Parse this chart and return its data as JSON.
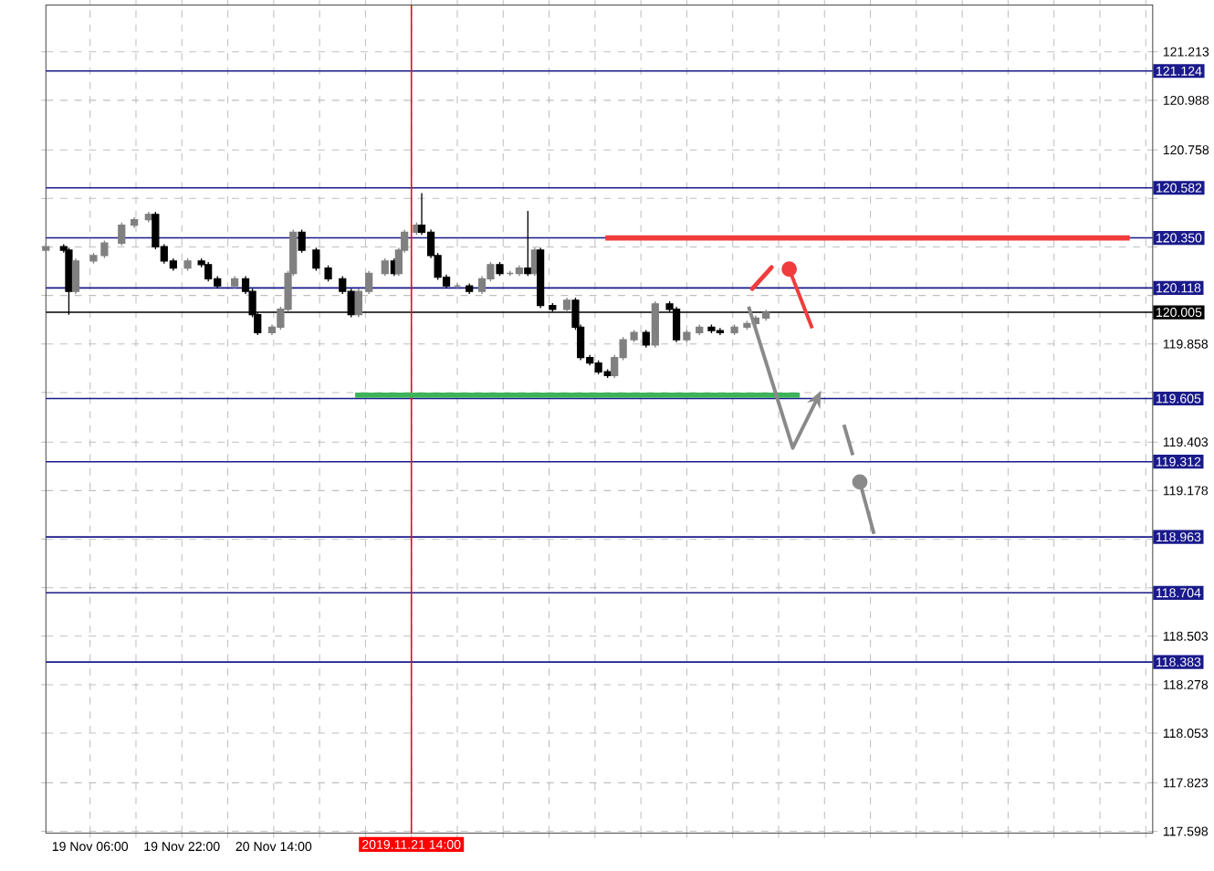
{
  "chart_data": {
    "type": "candlestick",
    "x": [
      "2019-11-18T22:18",
      "2019-11-19T01:24",
      "2019-11-19T02:18",
      "2019-11-19T03:30",
      "2019-11-19T06:36",
      "2019-11-19T08:30",
      "2019-11-19T11:30",
      "2019-11-19T13:42",
      "2019-11-19T16:12",
      "2019-11-19T17:24",
      "2019-11-19T18:54",
      "2019-11-19T20:30",
      "2019-11-19T23:00",
      "2019-11-20T01:24",
      "2019-11-20T02:36",
      "2019-11-20T04:12",
      "2019-11-20T07:12",
      "2019-11-20T09:06",
      "2019-11-20T10:18",
      "2019-11-20T11:12",
      "2019-11-20T13:42",
      "2019-11-20T15:12",
      "2019-11-20T16:30",
      "2019-11-20T17:24",
      "2019-11-20T18:54",
      "2019-11-20T21:24",
      "2019-11-20T23:30",
      "2019-11-21T02:00",
      "2019-11-21T03:30",
      "2019-11-21T04:48",
      "2019-11-21T06:36",
      "2019-11-21T09:24",
      "2019-11-21T11:00",
      "2019-11-21T11:48",
      "2019-11-21T12:48",
      "2019-11-21T14:54",
      "2019-11-21T15:48",
      "2019-11-21T17:24",
      "2019-11-21T18:36",
      "2019-11-21T20:06",
      "2019-11-21T22:00",
      "2019-11-22T00:06",
      "2019-11-22T02:18",
      "2019-11-22T03:48",
      "2019-11-22T05:24",
      "2019-11-22T07:12",
      "2019-11-22T08:48",
      "2019-11-22T10:18",
      "2019-11-22T11:30",
      "2019-11-22T12:30",
      "2019-11-22T14:36",
      "2019-11-22T17:06",
      "2019-11-22T18:36",
      "2019-11-22T19:30",
      "2019-11-22T21:06",
      "2019-11-22T22:36",
      "2019-11-23T00:12",
      "2019-11-23T01:24",
      "2019-11-23T02:54",
      "2019-11-23T04:48",
      "2019-11-23T06:54",
      "2019-11-23T08:30",
      "2019-11-23T11:00",
      "2019-11-23T12:12",
      "2019-11-23T14:00",
      "2019-11-23T16:12",
      "2019-11-23T18:18",
      "2019-11-23T19:48",
      "2019-11-23T22:18",
      "2019-11-24T00:30",
      "2019-11-24T02:00",
      "2019-11-24T03:48"
    ],
    "ohlc": [
      [
        120.293,
        120.321,
        120.281,
        120.309
      ],
      [
        120.309,
        120.321,
        120.281,
        120.293
      ],
      [
        120.293,
        120.305,
        119.994,
        120.102
      ],
      [
        120.102,
        120.255,
        120.09,
        120.243
      ],
      [
        120.243,
        120.28,
        120.231,
        120.268
      ],
      [
        120.268,
        120.338,
        120.256,
        120.326
      ],
      [
        120.326,
        120.421,
        120.314,
        120.409
      ],
      [
        120.409,
        120.446,
        120.397,
        120.434
      ],
      [
        120.434,
        120.471,
        120.422,
        120.459
      ],
      [
        120.459,
        120.471,
        120.297,
        120.309
      ],
      [
        120.309,
        120.321,
        120.231,
        120.243
      ],
      [
        120.243,
        120.255,
        120.198,
        120.21
      ],
      [
        120.21,
        120.255,
        120.198,
        120.243
      ],
      [
        120.243,
        120.255,
        120.214,
        120.226
      ],
      [
        120.226,
        120.238,
        120.148,
        120.16
      ],
      [
        120.16,
        120.172,
        120.115,
        120.127
      ],
      [
        120.127,
        120.172,
        120.115,
        120.16
      ],
      [
        120.16,
        120.172,
        120.09,
        120.102
      ],
      [
        120.102,
        120.114,
        119.982,
        119.994
      ],
      [
        119.994,
        120.006,
        119.899,
        119.911
      ],
      [
        119.911,
        119.948,
        119.899,
        119.936
      ],
      [
        119.936,
        120.031,
        119.924,
        120.019
      ],
      [
        120.019,
        120.197,
        120.007,
        120.185
      ],
      [
        120.185,
        120.388,
        120.173,
        120.376
      ],
      [
        120.376,
        120.388,
        120.281,
        120.293
      ],
      [
        120.293,
        120.305,
        120.198,
        120.21
      ],
      [
        120.21,
        120.222,
        120.148,
        120.16
      ],
      [
        120.16,
        120.172,
        120.09,
        120.102
      ],
      [
        120.102,
        120.114,
        119.982,
        119.994
      ],
      [
        119.994,
        120.114,
        119.982,
        120.102
      ],
      [
        120.102,
        120.197,
        120.09,
        120.185
      ],
      [
        120.185,
        120.255,
        120.173,
        120.243
      ],
      [
        120.243,
        120.255,
        120.173,
        120.185
      ],
      [
        120.185,
        120.305,
        120.173,
        120.293
      ],
      [
        120.293,
        120.388,
        120.281,
        120.376
      ],
      [
        120.376,
        120.421,
        120.364,
        120.409
      ],
      [
        120.409,
        120.558,
        120.364,
        120.376
      ],
      [
        120.376,
        120.388,
        120.256,
        120.268
      ],
      [
        120.268,
        120.28,
        120.156,
        120.168
      ],
      [
        120.168,
        120.18,
        120.115,
        120.127
      ],
      [
        120.127,
        120.139,
        120.115,
        120.127
      ],
      [
        120.127,
        120.139,
        120.09,
        120.102
      ],
      [
        120.102,
        120.172,
        120.09,
        120.16
      ],
      [
        120.16,
        120.238,
        120.148,
        120.226
      ],
      [
        120.226,
        120.238,
        120.173,
        120.185
      ],
      [
        120.185,
        120.197,
        120.173,
        120.185
      ],
      [
        120.185,
        120.222,
        120.173,
        120.21
      ],
      [
        120.21,
        120.475,
        120.173,
        120.185
      ],
      [
        120.185,
        120.305,
        120.173,
        120.293
      ],
      [
        120.293,
        120.305,
        120.024,
        120.036
      ],
      [
        120.036,
        120.048,
        120.007,
        120.019
      ],
      [
        120.019,
        120.073,
        120.007,
        120.061
      ],
      [
        120.061,
        120.073,
        119.924,
        119.936
      ],
      [
        119.936,
        119.948,
        119.783,
        119.795
      ],
      [
        119.795,
        119.807,
        119.758,
        119.77
      ],
      [
        119.77,
        119.782,
        119.717,
        119.729
      ],
      [
        119.729,
        119.741,
        119.7,
        119.712
      ],
      [
        119.712,
        119.807,
        119.7,
        119.795
      ],
      [
        119.795,
        119.89,
        119.783,
        119.878
      ],
      [
        119.878,
        119.923,
        119.866,
        119.911
      ],
      [
        119.911,
        119.923,
        119.841,
        119.853
      ],
      [
        119.853,
        120.056,
        119.841,
        120.044
      ],
      [
        120.044,
        120.056,
        120.007,
        120.019
      ],
      [
        120.019,
        120.031,
        119.866,
        119.878
      ],
      [
        119.878,
        119.923,
        119.866,
        119.911
      ],
      [
        119.911,
        119.948,
        119.899,
        119.936
      ],
      [
        119.936,
        119.948,
        119.908,
        119.92
      ],
      [
        119.92,
        119.932,
        119.899,
        119.911
      ],
      [
        119.911,
        119.948,
        119.899,
        119.936
      ],
      [
        119.936,
        119.965,
        119.924,
        119.953
      ],
      [
        119.953,
        119.99,
        119.941,
        119.978
      ],
      [
        119.978,
        120.017,
        119.966,
        120.005
      ]
    ],
    "series": [
      {
        "type": "line",
        "color": "#f03c3c",
        "x": [
          "2019-11-22T23:48",
          "2019-11-26T19:12"
        ],
        "values": [
          120.35,
          120.35
        ]
      },
      {
        "type": "line",
        "color": "#3cb45a",
        "x": [
          "2019-11-21T04:12",
          "2019-11-24T09:42"
        ],
        "values": [
          119.62,
          119.62
        ]
      }
    ],
    "xlim": [
      "2019-11-18T22:18",
      "2019-11-26T23:12"
    ],
    "ylim": [
      117.59,
      121.43
    ],
    "xticks": [
      {
        "value": "2019-11-19T06:00",
        "label": "19 Nov 06:00"
      },
      {
        "value": "2019-11-19T14:00",
        "label": null
      },
      {
        "value": "2019-11-19T22:00",
        "label": "19 Nov 22:00"
      },
      {
        "value": "2019-11-20T06:00",
        "label": null
      },
      {
        "value": "2019-11-20T14:00",
        "label": "20 Nov 14:00"
      },
      {
        "value": "2019-11-20T22:00",
        "label": null
      },
      {
        "value": "2019-11-21T06:00",
        "label": null
      },
      {
        "value": "2019-11-21T14:00",
        "label": null
      },
      {
        "value": "2019-11-21T22:00",
        "label": null
      },
      {
        "value": "2019-11-22T06:00",
        "label": null
      },
      {
        "value": "2019-11-22T14:00",
        "label": null
      },
      {
        "value": "2019-11-22T22:00",
        "label": null
      },
      {
        "value": "2019-11-23T06:00",
        "label": null
      },
      {
        "value": "2019-11-23T14:00",
        "label": null
      },
      {
        "value": "2019-11-23T22:00",
        "label": null
      },
      {
        "value": "2019-11-24T06:00",
        "label": null
      },
      {
        "value": "2019-11-24T14:00",
        "label": null
      },
      {
        "value": "2019-11-24T22:00",
        "label": null
      },
      {
        "value": "2019-11-25T06:00",
        "label": null
      },
      {
        "value": "2019-11-25T14:00",
        "label": null
      },
      {
        "value": "2019-11-25T22:00",
        "label": null
      },
      {
        "value": "2019-11-26T06:00",
        "label": null
      },
      {
        "value": "2019-11-26T14:00",
        "label": null
      },
      {
        "value": "2019-11-26T22:00",
        "label": null
      }
    ],
    "yticks": [
      121.213,
      120.988,
      120.758,
      {
        "value": 120.533,
        "label": null
      },
      {
        "value": 120.308,
        "label": null
      },
      {
        "value": 120.083,
        "label": null
      },
      119.858,
      {
        "value": 119.633,
        "label": null
      },
      119.403,
      119.178,
      {
        "value": 118.953,
        "label": null
      },
      {
        "value": 118.728,
        "label": null
      },
      118.503,
      118.278,
      118.053,
      117.823,
      117.598
    ],
    "ref_lines": [
      {
        "axis": "y",
        "value": 121.124,
        "label": "121.124",
        "color": "#1a1a8c"
      },
      {
        "axis": "y",
        "value": 120.582,
        "label": "120.582",
        "color": "#1a1a8c"
      },
      {
        "axis": "y",
        "value": 120.35,
        "label": "120.350",
        "color": "#1a1a8c"
      },
      {
        "axis": "y",
        "value": 120.118,
        "label": "120.118",
        "color": "#1a1a8c"
      },
      {
        "axis": "y",
        "value": 120.005,
        "label": "120.005",
        "color": "#000000"
      },
      {
        "axis": "y",
        "value": 119.605,
        "label": "119.605",
        "color": "#1a1a8c"
      },
      {
        "axis": "y",
        "value": 119.312,
        "label": "119.312",
        "color": "#1a1a8c"
      },
      {
        "axis": "y",
        "value": 118.963,
        "label": "118.963",
        "color": "#1a1a8c"
      },
      {
        "axis": "y",
        "value": 118.704,
        "label": "118.704",
        "color": "#1a1a8c"
      },
      {
        "axis": "y",
        "value": 118.383,
        "label": "118.383",
        "color": "#1a1a8c"
      },
      {
        "axis": "x",
        "value": "2019-11-21T14:00",
        "label": "2019.11.21 14:00",
        "color": "#ff0000"
      }
    ],
    "grid": true
  }
}
